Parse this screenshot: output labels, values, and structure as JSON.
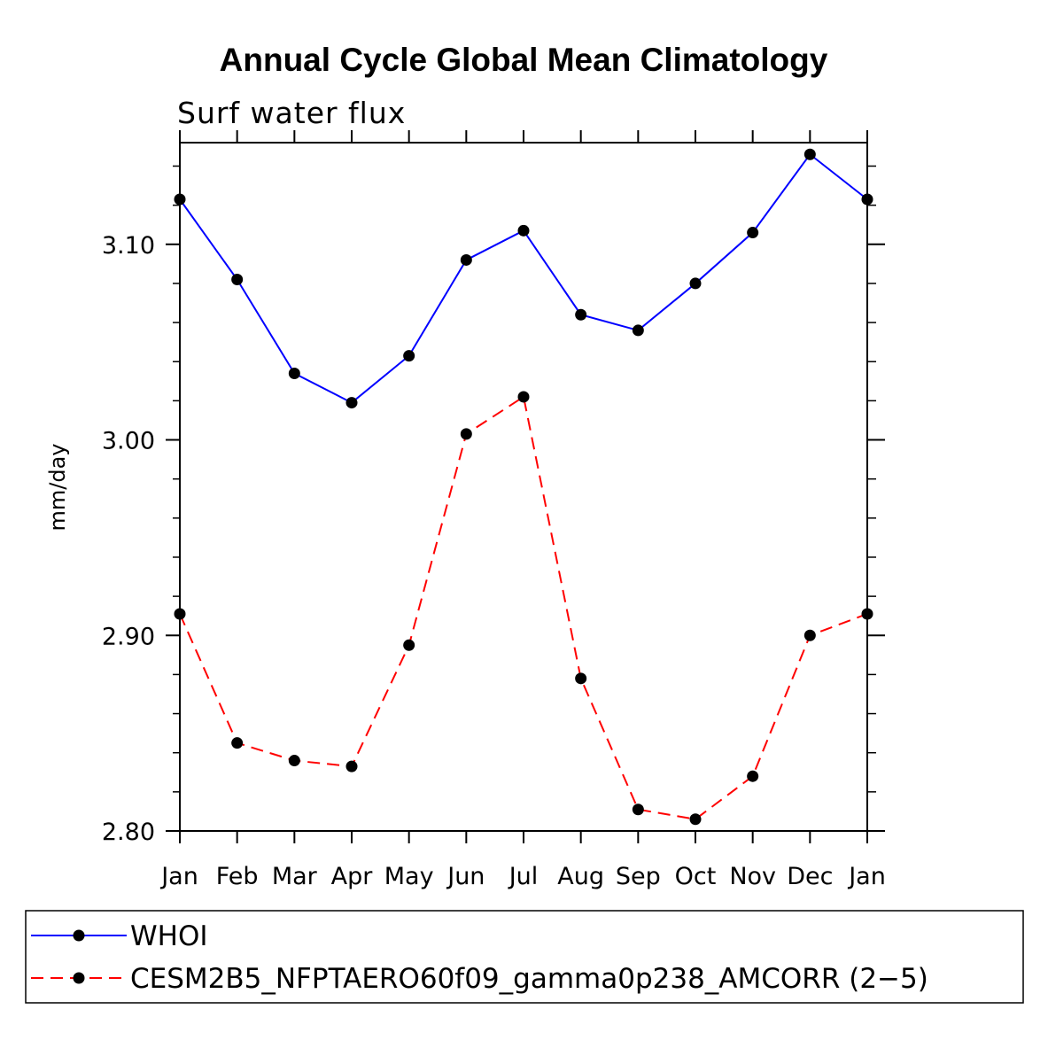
{
  "chart_data": {
    "type": "line",
    "title": "Annual Cycle Global Mean Climatology",
    "subtitle": "Surf water flux",
    "xlabel": "",
    "ylabel": "mm/day",
    "categories": [
      "Jan",
      "Feb",
      "Mar",
      "Apr",
      "May",
      "Jun",
      "Jul",
      "Aug",
      "Sep",
      "Oct",
      "Nov",
      "Dec",
      "Jan"
    ],
    "ylim": [
      2.8,
      3.152
    ],
    "yticks": [
      2.8,
      2.9,
      3.0,
      3.1
    ],
    "ytick_labels": [
      "2.80",
      "2.90",
      "3.00",
      "3.10"
    ],
    "series": [
      {
        "name": "WHOI",
        "color": "#0000ff",
        "dash": "solid",
        "values": [
          3.123,
          3.082,
          3.034,
          3.019,
          3.043,
          3.092,
          3.107,
          3.064,
          3.056,
          3.08,
          3.106,
          3.146,
          3.123
        ]
      },
      {
        "name": "CESM2B5_NFPTAERO60f09_gamma0p238_AMCORR (2−5)",
        "color": "#ff0000",
        "dash": "dashed",
        "values": [
          2.911,
          2.845,
          2.836,
          2.833,
          2.895,
          3.003,
          3.022,
          2.878,
          2.811,
          2.806,
          2.828,
          2.9,
          2.911
        ]
      }
    ],
    "legend": "bottom",
    "grid": false
  }
}
